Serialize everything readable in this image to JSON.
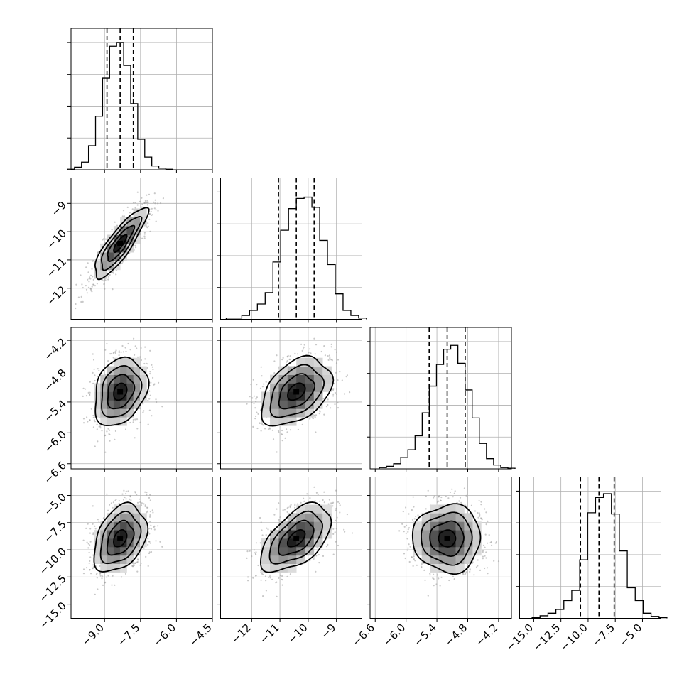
{
  "chart_data": {
    "type": "corner",
    "title": "",
    "parameters": [
      {
        "range": [
          -10.4,
          -4.5
        ],
        "mean": -8.35,
        "sigma": 0.55,
        "quantiles": [
          -8.9,
          -8.35,
          -7.8
        ],
        "ticks": [
          -9.0,
          -7.5,
          -6.0,
          -4.5
        ],
        "tick_labels": [
          "-9.0",
          "-7.5",
          "-6.0",
          "-4.5"
        ],
        "hist": [
          0.004,
          0.02,
          0.06,
          0.19,
          0.42,
          0.72,
          0.97,
          1.0,
          0.82,
          0.52,
          0.24,
          0.1,
          0.03,
          0.012,
          0.004
        ]
      },
      {
        "range": [
          -13.1,
          -8.1
        ],
        "mean": -10.42,
        "sigma": 0.62,
        "quantiles": [
          -11.05,
          -10.42,
          -9.79
        ],
        "ticks": [
          -12,
          -11,
          -10,
          -9
        ],
        "tick_labels": [
          "-12",
          "-11",
          "-10",
          "-9"
        ],
        "hist": [
          0.01,
          0.01,
          0.03,
          0.07,
          0.12,
          0.21,
          0.45,
          0.7,
          0.87,
          0.95,
          0.96,
          0.88,
          0.62,
          0.43,
          0.2,
          0.07,
          0.03,
          0.01
        ]
      },
      {
        "range": [
          -6.7,
          -3.95
        ],
        "mean": -5.2,
        "sigma": 0.33,
        "quantiles": [
          -5.55,
          -5.2,
          -4.85
        ],
        "ticks": [
          -6.6,
          -6.0,
          -5.4,
          -4.8,
          -4.2
        ],
        "tick_labels": [
          "-6.6",
          "-6.0",
          "-5.4",
          "-4.8",
          "-4.2"
        ],
        "hist": [
          0.01,
          0.02,
          0.04,
          0.09,
          0.15,
          0.26,
          0.44,
          0.65,
          0.82,
          0.94,
          0.97,
          0.83,
          0.62,
          0.4,
          0.2,
          0.08,
          0.03,
          0.01,
          0.005
        ]
      },
      {
        "range": [
          -16.3,
          -3.3
        ],
        "mean": -8.95,
        "sigma": 1.55,
        "quantiles": [
          -10.7,
          -9.0,
          -7.6
        ],
        "ticks": [
          -15.0,
          -12.5,
          -10.0,
          -7.5,
          -5.0
        ],
        "tick_labels": [
          "-15.0",
          "-12.5",
          "-10.0",
          "-7.5",
          "-5.0"
        ],
        "hist": [
          0.005,
          0.02,
          0.04,
          0.07,
          0.14,
          0.22,
          0.46,
          0.83,
          0.95,
          0.98,
          0.82,
          0.53,
          0.24,
          0.14,
          0.04,
          0.015,
          0.005
        ]
      }
    ],
    "correlations": [
      [
        1,
        0.85,
        0.25,
        0.35
      ],
      [
        0.85,
        1,
        0.4,
        0.55
      ],
      [
        0.25,
        0.4,
        1,
        0.0
      ],
      [
        0.35,
        0.55,
        0.0,
        1
      ]
    ],
    "quantile_lines": "dashed",
    "contour_levels_sigma": [
      0.5,
      1.0,
      1.5,
      2.0
    ],
    "grid": true,
    "colors": {
      "points": "#9a9a9a",
      "lines": "#000000",
      "grid": "#b0b0b0"
    }
  }
}
